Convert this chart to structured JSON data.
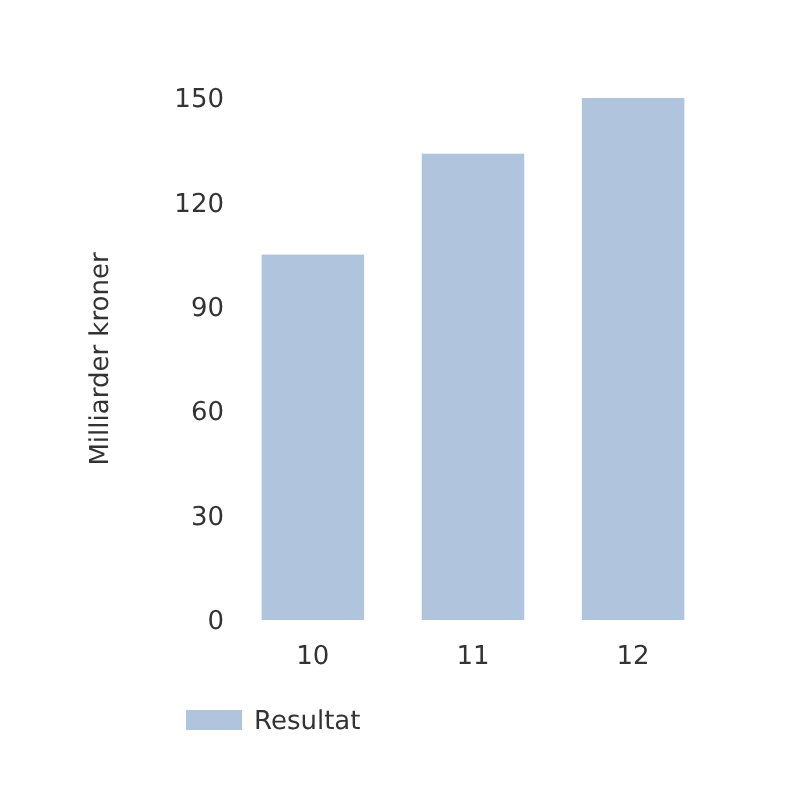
{
  "chart_data": {
    "type": "bar",
    "categories": [
      "10",
      "11",
      "12"
    ],
    "series": [
      {
        "name": "Resultat",
        "color": "#b0c4de",
        "values": [
          105,
          134,
          150
        ]
      }
    ],
    "ylabel": "Milliarder kroner",
    "ylim": [
      0,
      150
    ],
    "yticks": [
      0,
      30,
      60,
      90,
      120,
      150
    ],
    "grid": false,
    "legend": "bottom left"
  }
}
